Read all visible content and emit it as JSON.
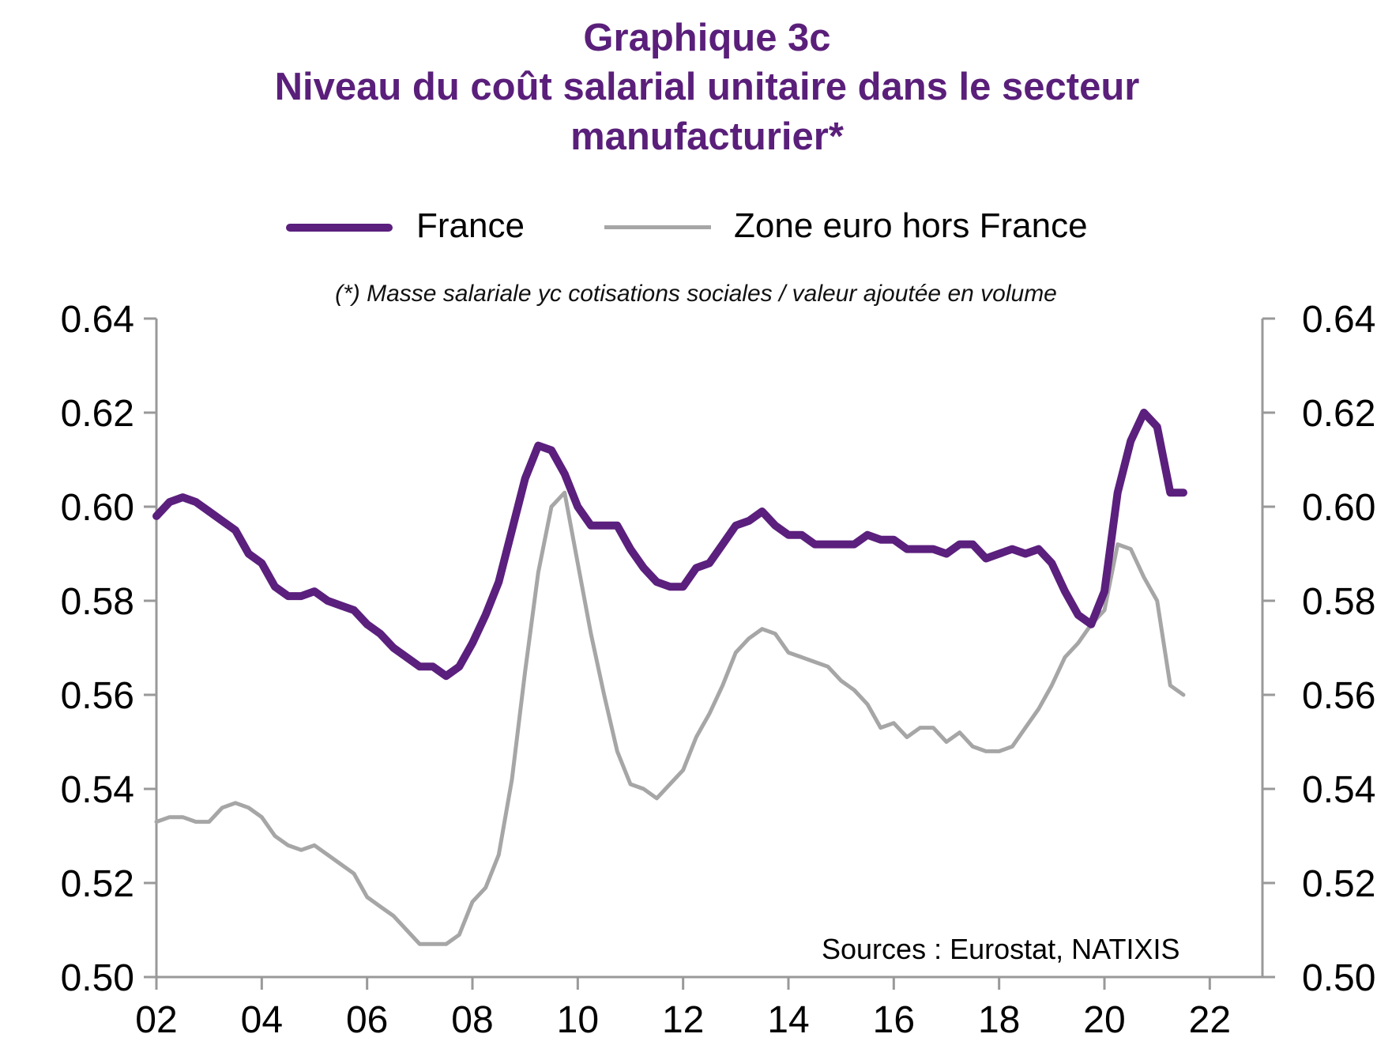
{
  "title_line1": "Graphique 3c",
  "title_line2": "Niveau du coût salarial unitaire dans le secteur",
  "title_line3": "manufacturier*",
  "note": "(*) Masse salariale yc cotisations sociales / valeur ajoutée en volume",
  "source": "Sources : Eurostat, NATIXIS",
  "colors": {
    "france": "#5b1f7d",
    "zone_euro": "#a6a6a6",
    "axis": "#999999"
  },
  "chart_data": {
    "type": "line",
    "title": "Graphique 3c — Niveau du coût salarial unitaire dans le secteur manufacturier*",
    "x_tick_labels": [
      "02",
      "04",
      "06",
      "08",
      "10",
      "12",
      "14",
      "16",
      "18",
      "20",
      "22"
    ],
    "x_ticks": [
      2002,
      2004,
      2006,
      2008,
      2010,
      2012,
      2014,
      2016,
      2018,
      2020,
      2022
    ],
    "xlim": [
      2002,
      2023
    ],
    "ylim": [
      0.5,
      0.64
    ],
    "y_ticks": [
      "0.64",
      "0.62",
      "0.60",
      "0.58",
      "0.56",
      "0.54",
      "0.52",
      "0.50"
    ],
    "y_tick_values": [
      0.64,
      0.62,
      0.6,
      0.58,
      0.56,
      0.54,
      0.52,
      0.5
    ],
    "right_axis": true,
    "grid": false,
    "legend_position": "top",
    "series": [
      {
        "name": "France",
        "x": [
          2002.0,
          2002.25,
          2002.5,
          2002.75,
          2003.0,
          2003.25,
          2003.5,
          2003.75,
          2004.0,
          2004.25,
          2004.5,
          2004.75,
          2005.0,
          2005.25,
          2005.5,
          2005.75,
          2006.0,
          2006.25,
          2006.5,
          2006.75,
          2007.0,
          2007.25,
          2007.5,
          2007.75,
          2008.0,
          2008.25,
          2008.5,
          2008.75,
          2009.0,
          2009.25,
          2009.5,
          2009.75,
          2010.0,
          2010.25,
          2010.5,
          2010.75,
          2011.0,
          2011.25,
          2011.5,
          2011.75,
          2012.0,
          2012.25,
          2012.5,
          2012.75,
          2013.0,
          2013.25,
          2013.5,
          2013.75,
          2014.0,
          2014.25,
          2014.5,
          2014.75,
          2015.0,
          2015.25,
          2015.5,
          2015.75,
          2016.0,
          2016.25,
          2016.5,
          2016.75,
          2017.0,
          2017.25,
          2017.5,
          2017.75,
          2018.0,
          2018.25,
          2018.5,
          2018.75,
          2019.0,
          2019.25,
          2019.5,
          2019.75,
          2020.0,
          2020.25,
          2020.5,
          2020.75,
          2021.0,
          2021.25,
          2021.5
        ],
        "values": [
          0.598,
          0.601,
          0.602,
          0.601,
          0.599,
          0.597,
          0.595,
          0.59,
          0.588,
          0.583,
          0.581,
          0.581,
          0.582,
          0.58,
          0.579,
          0.578,
          0.575,
          0.573,
          0.57,
          0.568,
          0.566,
          0.566,
          0.564,
          0.566,
          0.571,
          0.577,
          0.584,
          0.595,
          0.606,
          0.613,
          0.612,
          0.607,
          0.6,
          0.596,
          0.596,
          0.596,
          0.591,
          0.587,
          0.584,
          0.583,
          0.583,
          0.587,
          0.588,
          0.592,
          0.596,
          0.597,
          0.599,
          0.596,
          0.594,
          0.594,
          0.592,
          0.592,
          0.592,
          0.592,
          0.594,
          0.593,
          0.593,
          0.591,
          0.591,
          0.591,
          0.59,
          0.592,
          0.592,
          0.589,
          0.59,
          0.591,
          0.59,
          0.591,
          0.588,
          0.582,
          0.577,
          0.575,
          0.582,
          0.603,
          0.614,
          0.62,
          0.617,
          0.603,
          0.603
        ]
      },
      {
        "name": "Zone euro hors France",
        "x": [
          2002.0,
          2002.25,
          2002.5,
          2002.75,
          2003.0,
          2003.25,
          2003.5,
          2003.75,
          2004.0,
          2004.25,
          2004.5,
          2004.75,
          2005.0,
          2005.25,
          2005.5,
          2005.75,
          2006.0,
          2006.25,
          2006.5,
          2006.75,
          2007.0,
          2007.25,
          2007.5,
          2007.75,
          2008.0,
          2008.25,
          2008.5,
          2008.75,
          2009.0,
          2009.25,
          2009.5,
          2009.75,
          2010.0,
          2010.25,
          2010.5,
          2010.75,
          2011.0,
          2011.25,
          2011.5,
          2011.75,
          2012.0,
          2012.25,
          2012.5,
          2012.75,
          2013.0,
          2013.25,
          2013.5,
          2013.75,
          2014.0,
          2014.25,
          2014.5,
          2014.75,
          2015.0,
          2015.25,
          2015.5,
          2015.75,
          2016.0,
          2016.25,
          2016.5,
          2016.75,
          2017.0,
          2017.25,
          2017.5,
          2017.75,
          2018.0,
          2018.25,
          2018.5,
          2018.75,
          2019.0,
          2019.25,
          2019.5,
          2019.75,
          2020.0,
          2020.25,
          2020.5,
          2020.75,
          2021.0,
          2021.25,
          2021.5
        ],
        "values": [
          0.533,
          0.534,
          0.534,
          0.533,
          0.533,
          0.536,
          0.537,
          0.536,
          0.534,
          0.53,
          0.528,
          0.527,
          0.528,
          0.526,
          0.524,
          0.522,
          0.517,
          0.515,
          0.513,
          0.51,
          0.507,
          0.507,
          0.507,
          0.509,
          0.516,
          0.519,
          0.526,
          0.542,
          0.565,
          0.586,
          0.6,
          0.603,
          0.588,
          0.573,
          0.56,
          0.548,
          0.541,
          0.54,
          0.538,
          0.541,
          0.544,
          0.551,
          0.556,
          0.562,
          0.569,
          0.572,
          0.574,
          0.573,
          0.569,
          0.568,
          0.567,
          0.566,
          0.563,
          0.561,
          0.558,
          0.553,
          0.554,
          0.551,
          0.553,
          0.553,
          0.55,
          0.552,
          0.549,
          0.548,
          0.548,
          0.549,
          0.553,
          0.557,
          0.562,
          0.568,
          0.571,
          0.575,
          0.578,
          0.592,
          0.591,
          0.585,
          0.58,
          0.562,
          0.56
        ]
      }
    ]
  }
}
